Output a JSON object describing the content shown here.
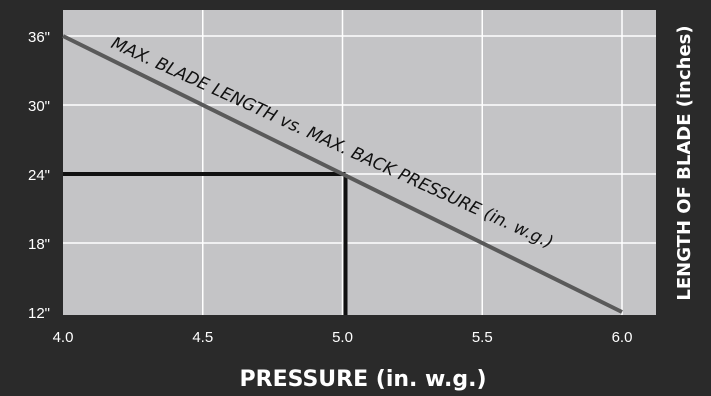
{
  "chart_data": {
    "type": "line",
    "xlabel": "PRESSURE (in. w.g.)",
    "ylabel": "LENGTH OF BLADE (inches)",
    "xlim": [
      4.0,
      6.0
    ],
    "ylim": [
      12,
      36
    ],
    "x_ticks": [
      4.0,
      4.5,
      5.0,
      5.5,
      6.0
    ],
    "x_tick_labels": [
      "4.0",
      "4.5",
      "5.0",
      "5.5",
      "6.0"
    ],
    "y_ticks": [
      12,
      18,
      24,
      30,
      36
    ],
    "y_tick_labels": [
      "12\"",
      "18\"",
      "24\"",
      "30\"",
      "36\""
    ],
    "grid": true,
    "series": [
      {
        "name": "MAX. BLADE LENGTH vs. MAX. BACK PRESSURE (in. w.g.)",
        "x": [
          4.0,
          6.0
        ],
        "y": [
          36,
          12
        ]
      }
    ],
    "reference_lines": {
      "horizontal": {
        "y": 24,
        "x_from": 4.0,
        "x_to": 5.0
      },
      "vertical": {
        "x": 5.0,
        "y_from": 12,
        "y_to": 24
      }
    },
    "colors": {
      "background": "#2a2a2a",
      "plot_background": "#c4c4c6",
      "grid": "#ffffff",
      "series_line": "#5a5a5a",
      "reference_line": "#111111",
      "text": "#ffffff"
    }
  }
}
